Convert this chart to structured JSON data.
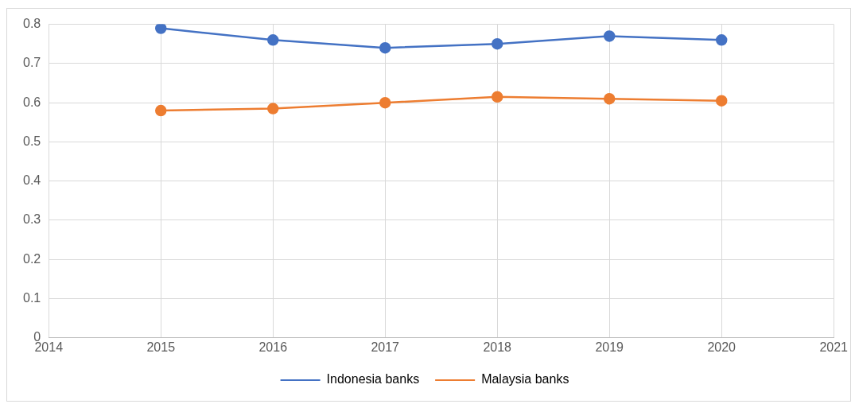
{
  "chart_data": {
    "type": "line",
    "x": [
      2015,
      2016,
      2017,
      2018,
      2019,
      2020
    ],
    "series": [
      {
        "name": "Indonesia banks",
        "color": "#4472c4",
        "values": [
          0.79,
          0.76,
          0.74,
          0.75,
          0.77,
          0.76
        ]
      },
      {
        "name": "Malaysia banks",
        "color": "#ed7d31",
        "values": [
          0.58,
          0.585,
          0.6,
          0.615,
          0.61,
          0.605
        ]
      }
    ],
    "xlim": [
      2014,
      2021
    ],
    "xticks": [
      2014,
      2015,
      2016,
      2017,
      2018,
      2019,
      2020,
      2021
    ],
    "ylim": [
      0,
      0.8
    ],
    "yticks": [
      0,
      0.1,
      0.2,
      0.3,
      0.4,
      0.5,
      0.6,
      0.7,
      0.8
    ],
    "grid": true,
    "legend": "bottom",
    "marker": "circle",
    "line_style": "solid"
  }
}
